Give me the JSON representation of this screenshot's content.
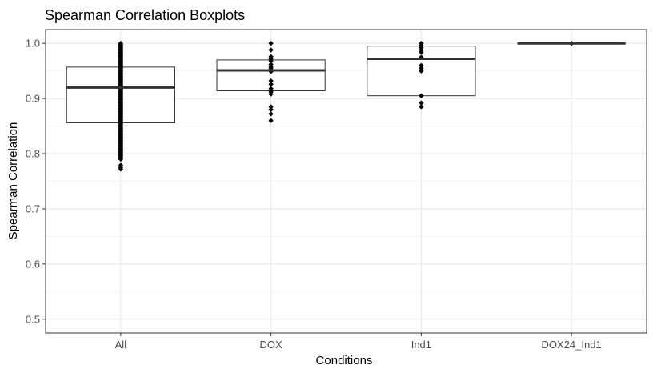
{
  "chart_data": {
    "type": "boxplot",
    "title": "Spearman Correlation Boxplots",
    "xlabel": "Conditions",
    "ylabel": "Spearman Correlation",
    "ylim": [
      0.475,
      1.025
    ],
    "yticks": [
      0.5,
      0.6,
      0.7,
      0.8,
      0.9,
      1.0
    ],
    "ytick_labels": [
      "0.5",
      "0.6",
      "0.7",
      "0.8",
      "0.9",
      "1.0"
    ],
    "grid": true,
    "categories": [
      "All",
      "DOX",
      "Ind1",
      "DOX24_Ind1"
    ],
    "boxes": [
      {
        "category": "All",
        "q1": 0.856,
        "median": 0.92,
        "q3": 0.957,
        "points": [
          1.0,
          0.998,
          0.996,
          0.994,
          0.992,
          0.99,
          0.988,
          0.986,
          0.984,
          0.982,
          0.98,
          0.978,
          0.976,
          0.974,
          0.972,
          0.97,
          0.968,
          0.966,
          0.964,
          0.962,
          0.96,
          0.958,
          0.956,
          0.954,
          0.952,
          0.95,
          0.948,
          0.946,
          0.944,
          0.942,
          0.94,
          0.938,
          0.936,
          0.934,
          0.932,
          0.93,
          0.928,
          0.926,
          0.924,
          0.922,
          0.92,
          0.918,
          0.916,
          0.914,
          0.912,
          0.91,
          0.908,
          0.906,
          0.904,
          0.902,
          0.9,
          0.898,
          0.896,
          0.894,
          0.892,
          0.89,
          0.888,
          0.886,
          0.884,
          0.882,
          0.88,
          0.878,
          0.876,
          0.874,
          0.872,
          0.87,
          0.868,
          0.866,
          0.864,
          0.862,
          0.86,
          0.858,
          0.856,
          0.854,
          0.852,
          0.85,
          0.848,
          0.846,
          0.844,
          0.842,
          0.84,
          0.838,
          0.836,
          0.834,
          0.832,
          0.83,
          0.828,
          0.826,
          0.824,
          0.822,
          0.82,
          0.818,
          0.816,
          0.814,
          0.812,
          0.81,
          0.808,
          0.806,
          0.804,
          0.802,
          0.8,
          0.798,
          0.796,
          0.794,
          0.792,
          0.79,
          0.779,
          0.775,
          0.772
        ]
      },
      {
        "category": "DOX",
        "q1": 0.914,
        "median": 0.951,
        "q3": 0.97,
        "points": [
          1.0,
          0.988,
          0.976,
          0.972,
          0.968,
          0.962,
          0.958,
          0.955,
          0.952,
          0.949,
          0.932,
          0.926,
          0.918,
          0.912,
          0.908,
          0.885,
          0.88,
          0.872,
          0.86
        ]
      },
      {
        "category": "Ind1",
        "q1": 0.905,
        "median": 0.972,
        "q3": 0.995,
        "points": [
          1.0,
          0.996,
          0.992,
          0.988,
          0.984,
          0.975,
          0.96,
          0.955,
          0.95,
          0.905,
          0.892,
          0.885
        ]
      },
      {
        "category": "DOX24_Ind1",
        "q1": 1.0,
        "median": 1.0,
        "q3": 1.0,
        "points": [
          1.0
        ]
      }
    ]
  }
}
